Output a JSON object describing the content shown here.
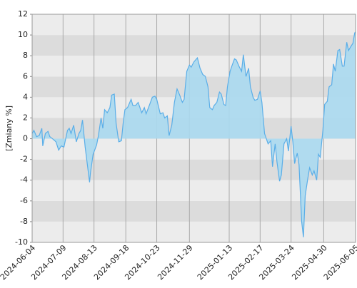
{
  "chart_data": {
    "type": "area",
    "y_label": "[Zmiany %]",
    "color": "#5aaee8",
    "fill": "#aad9ef",
    "xlim": [
      "2024-06-04",
      "2025-06-05"
    ],
    "xticks": [
      "2024-06-04",
      "2024-07-09",
      "2024-08-13",
      "2024-09-18",
      "2024-10-23",
      "2024-11-29",
      "2025-01-13",
      "2025-02-17",
      "2025-03-24",
      "2025-04-30",
      "2025-06-05"
    ],
    "ylim": [
      -10,
      12
    ],
    "yticks": [
      -10,
      -8,
      -6,
      -4,
      -2,
      0,
      2,
      4,
      6,
      8,
      10,
      12
    ],
    "grid": true,
    "x": [
      "2024-06-04",
      "2024-06-06",
      "2024-06-09",
      "2024-06-12",
      "2024-06-15",
      "2024-06-16",
      "2024-06-19",
      "2024-06-22",
      "2024-06-24",
      "2024-06-27",
      "2024-07-01",
      "2024-07-04",
      "2024-07-07",
      "2024-07-10",
      "2024-07-14",
      "2024-07-16",
      "2024-07-18",
      "2024-07-21",
      "2024-07-24",
      "2024-07-27",
      "2024-07-29",
      "2024-07-31",
      "2024-08-03",
      "2024-08-08",
      "2024-08-09",
      "2024-08-12",
      "2024-08-16",
      "2024-08-18",
      "2024-08-21",
      "2024-08-23",
      "2024-08-25",
      "2024-08-28",
      "2024-08-31",
      "2024-09-02",
      "2024-09-05",
      "2024-09-07",
      "2024-09-10",
      "2024-09-13",
      "2024-09-15",
      "2024-09-17",
      "2024-09-20",
      "2024-09-24",
      "2024-09-26",
      "2024-09-29",
      "2024-10-02",
      "2024-10-06",
      "2024-10-09",
      "2024-10-11",
      "2024-10-15",
      "2024-10-18",
      "2024-10-21",
      "2024-10-23",
      "2024-10-27",
      "2024-10-30",
      "2024-11-01",
      "2024-11-04",
      "2024-11-06",
      "2024-11-09",
      "2024-11-12",
      "2024-11-15",
      "2024-11-18",
      "2024-11-21",
      "2024-11-23",
      "2024-11-26",
      "2024-11-29",
      "2024-12-01",
      "2024-12-04",
      "2024-12-08",
      "2024-12-11",
      "2024-12-14",
      "2024-12-17",
      "2024-12-20",
      "2024-12-22",
      "2024-12-25",
      "2024-12-27",
      "2024-12-30",
      "2025-01-02",
      "2025-01-04",
      "2025-01-07",
      "2025-01-09",
      "2025-01-11",
      "2025-01-14",
      "2025-01-16",
      "2025-01-19",
      "2025-01-21",
      "2025-01-24",
      "2025-01-27",
      "2025-01-29",
      "2025-02-01",
      "2025-02-04",
      "2025-02-06",
      "2025-02-09",
      "2025-02-11",
      "2025-02-14",
      "2025-02-17",
      "2025-02-19",
      "2025-02-22",
      "2025-02-24",
      "2025-02-26",
      "2025-03-01",
      "2025-03-03",
      "2025-03-06",
      "2025-03-08",
      "2025-03-11",
      "2025-03-13",
      "2025-03-16",
      "2025-03-19",
      "2025-03-21",
      "2025-03-24",
      "2025-03-26",
      "2025-03-28",
      "2025-03-31",
      "2025-04-02",
      "2025-04-05",
      "2025-04-07",
      "2025-04-09",
      "2025-04-12",
      "2025-04-14",
      "2025-04-17",
      "2025-04-19",
      "2025-04-22",
      "2025-04-24",
      "2025-04-26",
      "2025-04-29",
      "2025-05-01",
      "2025-05-04",
      "2025-05-06",
      "2025-05-09",
      "2025-05-11",
      "2025-05-13",
      "2025-05-16",
      "2025-05-18",
      "2025-05-21",
      "2025-05-23",
      "2025-05-26",
      "2025-05-28",
      "2025-05-30",
      "2025-06-02",
      "2025-06-04",
      "2025-06-05"
    ],
    "values": [
      0.5,
      0.8,
      0.2,
      0.3,
      1.0,
      -0.7,
      0.5,
      0.7,
      0.2,
      0.0,
      -0.3,
      -1.1,
      -0.7,
      -0.8,
      0.8,
      1.0,
      0.5,
      1.3,
      -0.3,
      0.5,
      0.8,
      1.8,
      -0.8,
      -4.2,
      -3.3,
      -1.5,
      -0.6,
      0.3,
      2.0,
      1.0,
      2.8,
      2.5,
      3.0,
      4.2,
      4.3,
      1.5,
      -0.3,
      -0.2,
      1.5,
      2.8,
      3.0,
      3.8,
      3.2,
      3.2,
      3.5,
      2.5,
      3.0,
      2.4,
      3.3,
      4.0,
      4.1,
      3.8,
      2.4,
      2.5,
      2.0,
      2.2,
      0.3,
      1.3,
      3.5,
      4.8,
      4.2,
      3.5,
      3.8,
      6.5,
      7.1,
      6.9,
      7.4,
      7.8,
      6.8,
      6.2,
      6.0,
      5.0,
      3.0,
      2.8,
      3.2,
      3.5,
      4.5,
      4.3,
      3.3,
      3.2,
      5.0,
      6.5,
      7.0,
      7.7,
      7.6,
      7.0,
      6.5,
      8.1,
      6.0,
      6.8,
      5.0,
      4.0,
      3.7,
      3.8,
      4.6,
      3.5,
      0.5,
      0.0,
      -0.5,
      -0.2,
      -2.7,
      -0.5,
      -2.2,
      -4.1,
      -3.5,
      -0.5,
      0.0,
      -1.2,
      1.2,
      -0.3,
      -2.4,
      -1.4,
      -2.5,
      -8.0,
      -9.5,
      -5.5,
      -3.8,
      -2.8,
      -3.5,
      -3.1,
      -4.0,
      -1.5,
      -1.8,
      0.8,
      3.3,
      3.6,
      5.0,
      5.2,
      7.2,
      6.5,
      8.5,
      8.6,
      7.0,
      7.0,
      9.3,
      8.5,
      8.8,
      9.2,
      10.2,
      10.3
    ]
  }
}
